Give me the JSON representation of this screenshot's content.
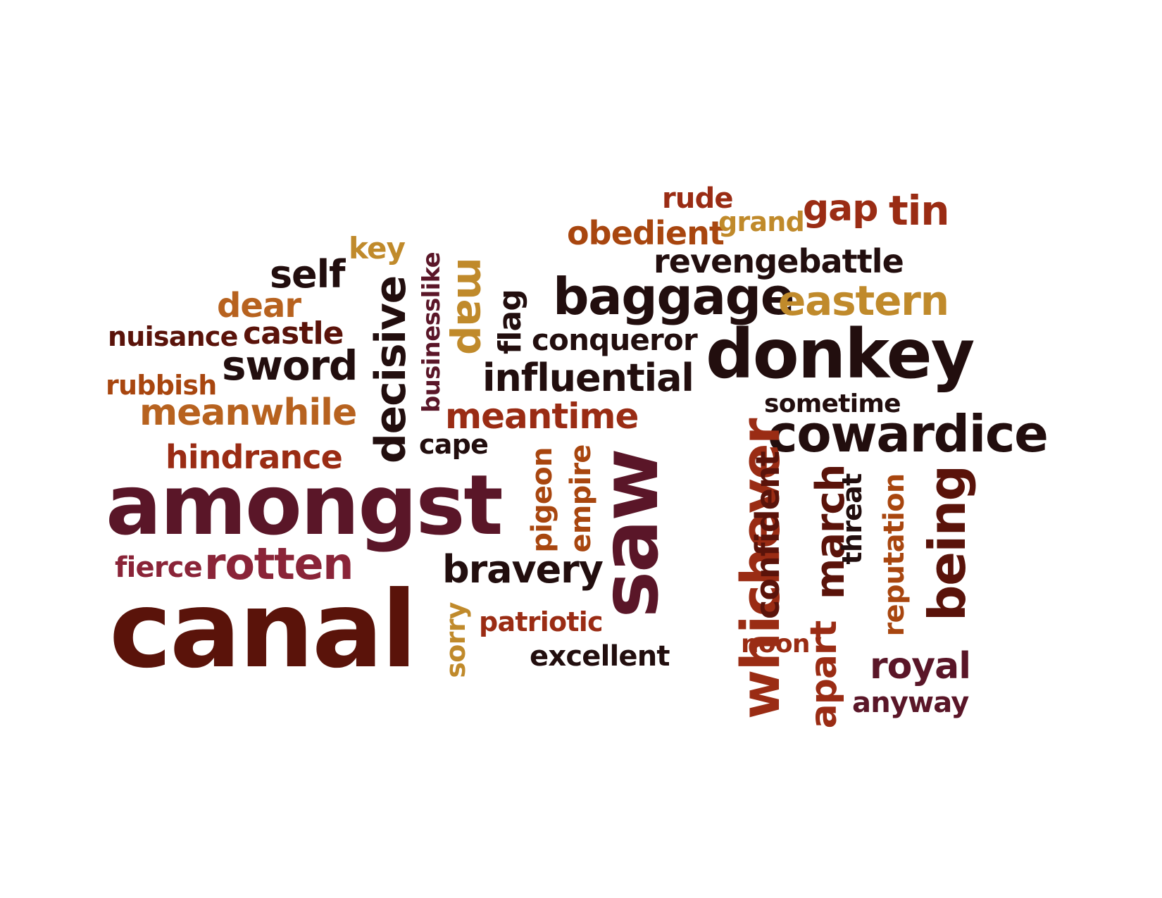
{
  "palette": {
    "black": "#220e0e",
    "maroon": "#5a1628",
    "brown": "#5a130a",
    "red": "#9a2c14",
    "rust": "#a8460f",
    "orange": "#b7621f",
    "gold": "#c08a2b",
    "wine": "#8a2438"
  },
  "words": [
    {
      "text": "rude",
      "color": "#9a2c14",
      "orientation": "horizontal"
    },
    {
      "text": "gap",
      "color": "#9a2c14",
      "orientation": "horizontal"
    },
    {
      "text": "tin",
      "color": "#9a2c14",
      "orientation": "horizontal"
    },
    {
      "text": "obedient",
      "color": "#a8460f",
      "orientation": "horizontal"
    },
    {
      "text": "grand",
      "color": "#c08a2b",
      "orientation": "horizontal"
    },
    {
      "text": "key",
      "color": "#c08a2b",
      "orientation": "horizontal"
    },
    {
      "text": "revengebattle",
      "color": "#220e0e",
      "orientation": "horizontal"
    },
    {
      "text": "self",
      "color": "#220e0e",
      "orientation": "horizontal"
    },
    {
      "text": "businesslike",
      "color": "#5a1628",
      "orientation": "vertical"
    },
    {
      "text": "map",
      "color": "#c08a2b",
      "orientation": "vertical"
    },
    {
      "text": "baggage",
      "color": "#220e0e",
      "orientation": "horizontal"
    },
    {
      "text": "eastern",
      "color": "#c08a2b",
      "orientation": "horizontal"
    },
    {
      "text": "dear",
      "color": "#b7621f",
      "orientation": "horizontal"
    },
    {
      "text": "flag",
      "color": "#220e0e",
      "orientation": "vertical"
    },
    {
      "text": "decisive",
      "color": "#220e0e",
      "orientation": "vertical"
    },
    {
      "text": "nuisance",
      "color": "#5a130a",
      "orientation": "horizontal"
    },
    {
      "text": "castle",
      "color": "#5a130a",
      "orientation": "horizontal"
    },
    {
      "text": "conqueror",
      "color": "#220e0e",
      "orientation": "horizontal"
    },
    {
      "text": "donkey",
      "color": "#220e0e",
      "orientation": "horizontal"
    },
    {
      "text": "sword",
      "color": "#220e0e",
      "orientation": "horizontal"
    },
    {
      "text": "rubbish",
      "color": "#a8460f",
      "orientation": "horizontal"
    },
    {
      "text": "influential",
      "color": "#220e0e",
      "orientation": "horizontal"
    },
    {
      "text": "sometime",
      "color": "#220e0e",
      "orientation": "horizontal"
    },
    {
      "text": "meanwhile",
      "color": "#b7621f",
      "orientation": "horizontal"
    },
    {
      "text": "meantime",
      "color": "#9a2c14",
      "orientation": "horizontal"
    },
    {
      "text": "cowardice",
      "color": "#220e0e",
      "orientation": "horizontal"
    },
    {
      "text": "cape",
      "color": "#220e0e",
      "orientation": "horizontal"
    },
    {
      "text": "hindrance",
      "color": "#9a2c14",
      "orientation": "horizontal"
    },
    {
      "text": "amongst",
      "color": "#5a1628",
      "orientation": "horizontal"
    },
    {
      "text": "pigeon",
      "color": "#a8460f",
      "orientation": "vertical"
    },
    {
      "text": "empire",
      "color": "#a8460f",
      "orientation": "vertical"
    },
    {
      "text": "saw",
      "color": "#5a1628",
      "orientation": "vertical"
    },
    {
      "text": "whichever",
      "color": "#9a2c14",
      "orientation": "vertical"
    },
    {
      "text": "confident",
      "color": "#5a130a",
      "orientation": "vertical"
    },
    {
      "text": "march",
      "color": "#5a130a",
      "orientation": "vertical"
    },
    {
      "text": "threat",
      "color": "#220e0e",
      "orientation": "vertical"
    },
    {
      "text": "reputation",
      "color": "#a8460f",
      "orientation": "vertical"
    },
    {
      "text": "being",
      "color": "#5a130a",
      "orientation": "vertical"
    },
    {
      "text": "fierce",
      "color": "#8a2438",
      "orientation": "horizontal"
    },
    {
      "text": "rotten",
      "color": "#8a2438",
      "orientation": "horizontal"
    },
    {
      "text": "bravery",
      "color": "#220e0e",
      "orientation": "horizontal"
    },
    {
      "text": "canal",
      "color": "#5a130a",
      "orientation": "horizontal"
    },
    {
      "text": "sorry",
      "color": "#c08a2b",
      "orientation": "vertical"
    },
    {
      "text": "patriotic",
      "color": "#9a2c14",
      "orientation": "horizontal"
    },
    {
      "text": "noon",
      "color": "#9a2c14",
      "orientation": "horizontal"
    },
    {
      "text": "apart",
      "color": "#9a2c14",
      "orientation": "vertical"
    },
    {
      "text": "excellent",
      "color": "#220e0e",
      "orientation": "horizontal"
    },
    {
      "text": "royal",
      "color": "#5a1628",
      "orientation": "horizontal"
    },
    {
      "text": "anyway",
      "color": "#5a1628",
      "orientation": "horizontal"
    }
  ]
}
